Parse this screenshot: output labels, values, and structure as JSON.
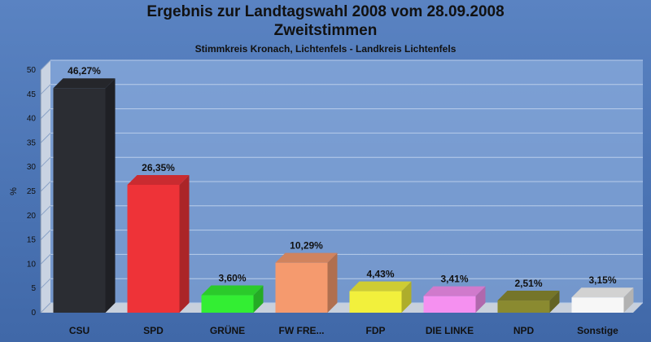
{
  "chart_data": {
    "type": "bar",
    "title": "Ergebnis zur Landtagswahl 2008 vom 28.09.2008",
    "title_line2": "Zweitstimmen",
    "subtitle": "Stimmkreis Kronach, Lichtenfels - Landkreis Lichtenfels",
    "ylabel": "%",
    "ylim": [
      0,
      50
    ],
    "yticks": [
      "0",
      "5",
      "10",
      "15",
      "20",
      "25",
      "30",
      "35",
      "40",
      "45",
      "50"
    ],
    "categories": [
      "CSU",
      "SPD",
      "GRÜNE",
      "FW FRE...",
      "FDP",
      "DIE LINKE",
      "NPD",
      "Sonstige"
    ],
    "values": [
      46.27,
      26.35,
      3.6,
      10.29,
      4.43,
      3.41,
      2.51,
      3.15
    ],
    "data_labels": [
      "46,27%",
      "26,35%",
      "3,60%",
      "10,29%",
      "4,43%",
      "3,41%",
      "2,51%",
      "3,15%"
    ],
    "colors": [
      "#2b2d33",
      "#ee3338",
      "#33ee33",
      "#f59a6e",
      "#f2f03c",
      "#f590f0",
      "#8a8a30",
      "#f7f7f7"
    ],
    "grid": true,
    "legend": "none"
  }
}
